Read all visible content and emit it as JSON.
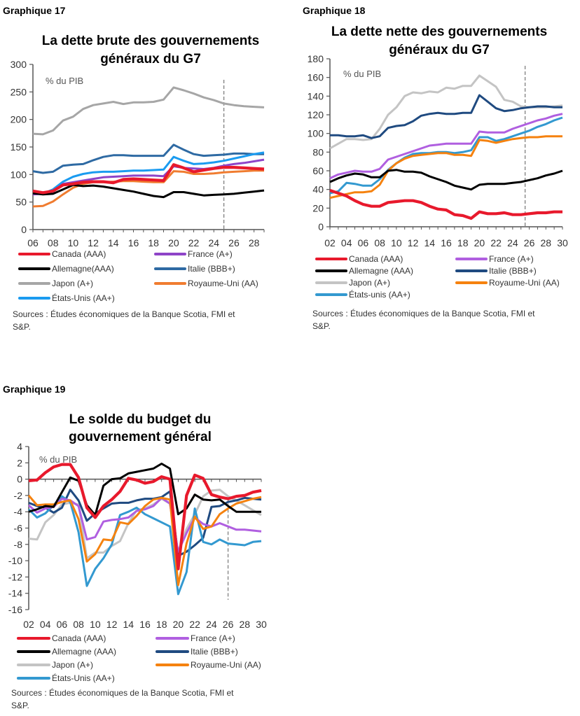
{
  "chart_data": [
    {
      "type": "line",
      "label": "Graphique 17",
      "title": [
        "La dette brute des gouvernements",
        "généraux du G7"
      ],
      "unit_label": "% du PIB",
      "x": [
        2006,
        2007,
        2008,
        2009,
        2010,
        2011,
        2012,
        2013,
        2014,
        2015,
        2016,
        2017,
        2018,
        2019,
        2020,
        2021,
        2022,
        2023,
        2024,
        2025,
        2026,
        2027,
        2028,
        2029
      ],
      "x_tick_labels": [
        "06",
        "08",
        "10",
        "12",
        "14",
        "16",
        "18",
        "20",
        "22",
        "24",
        "26",
        "28"
      ],
      "y_ticks": [
        0,
        50,
        100,
        150,
        200,
        250,
        300
      ],
      "ylim": [
        0,
        300
      ],
      "forecast_line_x": 2025,
      "grid": false,
      "legend_placement": "bottom",
      "series": [
        {
          "name": "Canada (AAA)",
          "color": "#e8192c",
          "values": [
            70,
            67,
            70,
            81,
            83,
            86,
            87,
            87,
            85,
            91,
            92,
            91,
            90,
            89,
            118,
            112,
            105,
            108,
            111,
            113,
            113,
            112,
            111,
            110
          ]
        },
        {
          "name": "France (A+)",
          "color": "#8e44c8",
          "values": [
            64,
            65,
            69,
            83,
            86,
            89,
            92,
            95,
            96,
            97,
            98,
            98,
            98,
            97,
            115,
            112,
            111,
            110,
            112,
            116,
            119,
            121,
            124,
            127
          ]
        },
        {
          "name": "Allemagne(AAA)",
          "color": "#000000",
          "values": [
            66,
            64,
            65,
            73,
            81,
            79,
            80,
            78,
            75,
            72,
            69,
            65,
            61,
            59,
            68,
            68,
            65,
            62,
            63,
            64,
            65,
            67,
            69,
            71
          ]
        },
        {
          "name": "Italie (BBB+)",
          "color": "#2e6aa3",
          "values": [
            106,
            103,
            105,
            116,
            118,
            119,
            126,
            132,
            135,
            135,
            134,
            134,
            134,
            134,
            154,
            145,
            137,
            134,
            135,
            136,
            138,
            138,
            137,
            137
          ]
        },
        {
          "name": "Japon (A+)",
          "color": "#a6a6a6",
          "values": [
            174,
            173,
            180,
            198,
            205,
            219,
            226,
            229,
            232,
            228,
            231,
            231,
            232,
            236,
            258,
            253,
            247,
            240,
            235,
            229,
            226,
            224,
            223,
            222
          ]
        },
        {
          "name": "Royaume-Uni (AA)",
          "color": "#f07c30",
          "values": [
            42,
            43,
            51,
            64,
            76,
            83,
            86,
            86,
            87,
            88,
            88,
            87,
            86,
            86,
            106,
            105,
            101,
            101,
            102,
            104,
            105,
            106,
            107,
            107
          ]
        },
        {
          "name": "États-Unis (AA+)",
          "color": "#1a9bf0",
          "values": [
            65,
            65,
            73,
            87,
            96,
            101,
            104,
            105,
            105,
            106,
            107,
            107,
            108,
            109,
            132,
            125,
            119,
            120,
            122,
            125,
            129,
            133,
            137,
            140
          ]
        }
      ],
      "source": [
        "Sources : Études économiques de la Banque Scotia, FMI et",
        "S&P."
      ]
    },
    {
      "type": "line",
      "label": "Graphique 18",
      "title": [
        "La dette nette des gouvernements",
        "généraux du G7"
      ],
      "unit_label": "% du PIB",
      "x": [
        2002,
        2003,
        2004,
        2005,
        2006,
        2007,
        2008,
        2009,
        2010,
        2011,
        2012,
        2013,
        2014,
        2015,
        2016,
        2017,
        2018,
        2019,
        2020,
        2021,
        2022,
        2023,
        2024,
        2025,
        2026,
        2027,
        2028,
        2029,
        2030
      ],
      "x_tick_labels": [
        "02",
        "04",
        "06",
        "08",
        "10",
        "12",
        "14",
        "16",
        "18",
        "20",
        "22",
        "24",
        "26",
        "28",
        "30"
      ],
      "y_ticks": [
        0,
        20,
        40,
        60,
        80,
        100,
        120,
        140,
        160,
        180
      ],
      "ylim": [
        0,
        180
      ],
      "forecast_line_x": 2025.5,
      "grid": false,
      "legend_placement": "bottom",
      "series": [
        {
          "name": "Canada (AAA)",
          "color": "#e8192c",
          "values": [
            39,
            36,
            33,
            28,
            24,
            22,
            22,
            26,
            27,
            28,
            28,
            26,
            22,
            19,
            18,
            13,
            12,
            9,
            16,
            14,
            14,
            15,
            13,
            13,
            14,
            15,
            15,
            16,
            16
          ]
        },
        {
          "name": "France (A+)",
          "color": "#b05fe0",
          "values": [
            52,
            56,
            58,
            60,
            59,
            59,
            62,
            72,
            75,
            78,
            81,
            84,
            87,
            88,
            89,
            89,
            89,
            89,
            102,
            101,
            101,
            101,
            105,
            108,
            111,
            114,
            116,
            119,
            121
          ]
        },
        {
          "name": "Allemagne (AAA)",
          "color": "#000000",
          "values": [
            48,
            52,
            55,
            57,
            56,
            53,
            53,
            60,
            61,
            59,
            59,
            58,
            54,
            51,
            48,
            44,
            42,
            40,
            45,
            46,
            46,
            46,
            47,
            48,
            50,
            52,
            55,
            57,
            60
          ]
        },
        {
          "name": "Italie (BBB+)",
          "color": "#1f4a80",
          "values": [
            98,
            98,
            97,
            97,
            98,
            95,
            97,
            106,
            108,
            109,
            113,
            119,
            121,
            122,
            121,
            121,
            122,
            122,
            141,
            134,
            127,
            124,
            125,
            127,
            128,
            129,
            129,
            128,
            128
          ]
        },
        {
          "name": "Japon (A+)",
          "color": "#c4c4c4",
          "values": [
            84,
            89,
            94,
            94,
            93,
            94,
            105,
            120,
            128,
            140,
            144,
            143,
            145,
            144,
            149,
            148,
            151,
            151,
            162,
            156,
            150,
            136,
            134,
            129,
            128,
            128,
            128,
            129,
            130
          ]
        },
        {
          "name": "Royaume-Uni (AA)",
          "color": "#f5820f",
          "values": [
            31,
            33,
            35,
            37,
            37,
            38,
            45,
            60,
            68,
            73,
            76,
            77,
            78,
            79,
            79,
            77,
            77,
            76,
            93,
            92,
            90,
            92,
            94,
            95,
            96,
            96,
            97,
            97,
            97
          ]
        },
        {
          "name": "États-unis (AA+)",
          "color": "#3399d0",
          "values": [
            36,
            38,
            47,
            46,
            44,
            44,
            51,
            61,
            68,
            74,
            78,
            79,
            79,
            80,
            80,
            79,
            80,
            82,
            96,
            96,
            92,
            94,
            97,
            100,
            103,
            107,
            110,
            114,
            117
          ]
        }
      ],
      "source": [
        "Sources : Études économiques de la Banque Scotia, FMI et",
        "S&P."
      ]
    },
    {
      "type": "line",
      "label": "Graphique 19",
      "title": [
        "Le solde du budget du",
        "gouvernement général"
      ],
      "unit_label": "% du PIB",
      "x": [
        2002,
        2003,
        2004,
        2005,
        2006,
        2007,
        2008,
        2009,
        2010,
        2011,
        2012,
        2013,
        2014,
        2015,
        2016,
        2017,
        2018,
        2019,
        2020,
        2021,
        2022,
        2023,
        2024,
        2025,
        2026,
        2027,
        2028,
        2029,
        2030
      ],
      "x_tick_labels": [
        "02",
        "04",
        "06",
        "08",
        "10",
        "12",
        "14",
        "16",
        "18",
        "20",
        "22",
        "24",
        "26",
        "28",
        "30"
      ],
      "y_ticks": [
        -16,
        -14,
        -12,
        -10,
        -8,
        -6,
        -4,
        -2,
        0,
        2,
        4
      ],
      "ylim": [
        -16,
        4
      ],
      "forecast_line_x": 2026,
      "grid": false,
      "legend_placement": "bottom",
      "series": [
        {
          "name": "Canada (AAA)",
          "color": "#e8192c",
          "values": [
            -0.2,
            -0.1,
            0.8,
            1.5,
            1.8,
            1.8,
            0.2,
            -3.5,
            -4.7,
            -3.3,
            -2.5,
            -1.5,
            0.1,
            -0.1,
            -0.5,
            -0.3,
            0.3,
            0,
            -11,
            -2.0,
            0.5,
            0.1,
            -1.9,
            -2.2,
            -2.4,
            -2.1,
            -2.0,
            -1.6,
            -1.4
          ]
        },
        {
          "name": "France (A+)",
          "color": "#b05fe0",
          "values": [
            -3.2,
            -4.1,
            -3.6,
            -3.4,
            -2.4,
            -2.6,
            -3.3,
            -7.4,
            -7.1,
            -5.2,
            -5.0,
            -4.9,
            -4.7,
            -3.9,
            -3.7,
            -3.3,
            -2.3,
            -3.0,
            -8.9,
            -6.6,
            -4.7,
            -5.5,
            -5.8,
            -5.4,
            -5.8,
            -6.2,
            -6.2,
            -6.3,
            -6.4
          ]
        },
        {
          "name": "Allemagne (AAA)",
          "color": "#000000",
          "values": [
            -4,
            -3.7,
            -3.3,
            -3.4,
            -1.6,
            0.2,
            -0.2,
            -3.2,
            -4.4,
            -0.8,
            0,
            0.1,
            0.7,
            0.9,
            1.1,
            1.3,
            1.9,
            1.3,
            -4.3,
            -3.6,
            -1.9,
            -2.5,
            -2.6,
            -2.5,
            -3.3,
            -4,
            -4,
            -4,
            -4
          ]
        },
        {
          "name": "Italie (BBB+)",
          "color": "#1f4a80",
          "values": [
            -2.9,
            -3.3,
            -3.5,
            -4.1,
            -3.5,
            -1.3,
            -2.6,
            -5.1,
            -4.2,
            -3.6,
            -3.0,
            -2.9,
            -2.9,
            -2.6,
            -2.4,
            -2.4,
            -2.2,
            -1.5,
            -9.4,
            -8.9,
            -8.1,
            -7.2,
            -3.4,
            -3.3,
            -2.8,
            -2.6,
            -2.3,
            -2.4,
            -2.5
          ]
        },
        {
          "name": "Japon (A+)",
          "color": "#c4c4c4",
          "values": [
            -7.3,
            -7.4,
            -5.3,
            -4.4,
            -3.1,
            -2.9,
            -3.1,
            -9.7,
            -9.0,
            -9.0,
            -8.2,
            -7.6,
            -5.4,
            -3.8,
            -3.6,
            -3.1,
            -2.4,
            -3.0,
            -8.9,
            -6.1,
            -4.3,
            -2.1,
            -1.4,
            -1.3,
            -2.1,
            -2.6,
            -3.2,
            -3.8,
            -4.4
          ]
        },
        {
          "name": "Royaume-Uni (AA)",
          "color": "#f5820f",
          "values": [
            -2.0,
            -3.2,
            -3.1,
            -3.1,
            -2.8,
            -2.6,
            -4.9,
            -10.1,
            -9.2,
            -7.4,
            -7.5,
            -5.3,
            -5.5,
            -4.5,
            -3.3,
            -2.5,
            -2.3,
            -2.5,
            -13.0,
            -7.9,
            -4.6,
            -6.1,
            -5.8,
            -4.3,
            -3.6,
            -3.0,
            -2.7,
            -2.4,
            -2.2
          ]
        },
        {
          "name": "États-Unis (AA+)",
          "color": "#3399d0",
          "values": [
            -3.7,
            -4.7,
            -4.2,
            -3.2,
            -2.1,
            -2.8,
            -6.5,
            -13.1,
            -11.0,
            -9.7,
            -8.0,
            -4.4,
            -4.0,
            -3.5,
            -4.3,
            -4.8,
            -5.3,
            -5.8,
            -14.1,
            -11.4,
            -3.6,
            -7.7,
            -8.0,
            -7.4,
            -7.9,
            -8.0,
            -8.1,
            -7.7,
            -7.6
          ]
        }
      ],
      "source": [
        "Sources : Études économiques de la Banque Scotia, FMI et",
        "S&P."
      ]
    }
  ]
}
